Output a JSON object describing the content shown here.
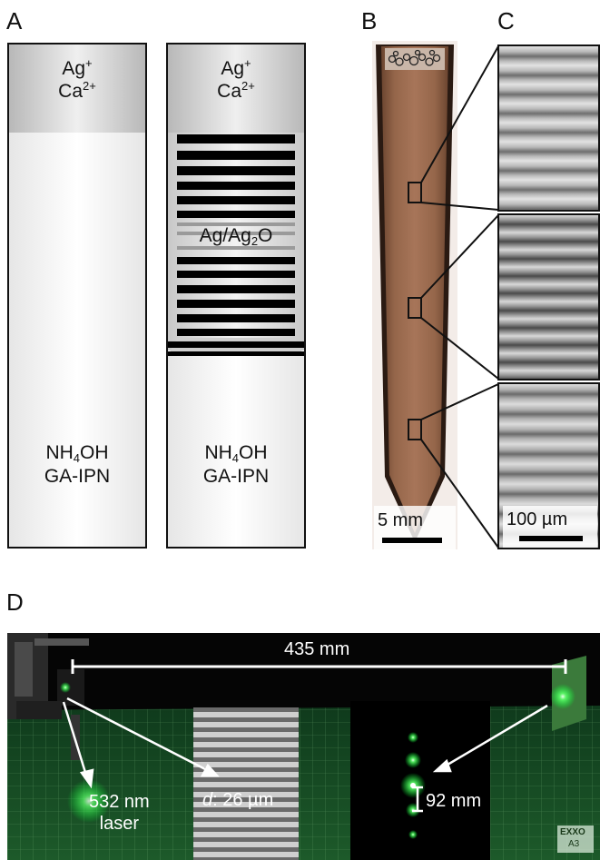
{
  "panels": {
    "a": "A",
    "b": "B",
    "c": "C",
    "d": "D"
  },
  "tube_left": {
    "top_l1": "Ag",
    "top_l1_sup": "+",
    "top_l2": "Ca",
    "top_l2_sup": "2+",
    "bot_l1a": "NH",
    "bot_l1_sub": "4",
    "bot_l1b": "OH",
    "bot_l2": "GA-IPN"
  },
  "tube_right": {
    "top_l1": "Ag",
    "top_l1_sup": "+",
    "top_l2": "Ca",
    "top_l2_sup": "2+",
    "mid_a": "Ag/Ag",
    "mid_sub": "2",
    "mid_b": "O",
    "bot_l1a": "NH",
    "bot_l1_sub": "4",
    "bot_l1b": "OH",
    "bot_l2": "GA-IPN"
  },
  "panel_b": {
    "scale_label": "5 mm"
  },
  "panel_c": {
    "scale_label": "100 µm"
  },
  "panel_d": {
    "distance_label": "435 mm",
    "laser_l1": "532 nm",
    "laser_l2": "laser",
    "spacing_italic": "d",
    "spacing_rest": ": 26 µm",
    "spot_label": "92 mm",
    "mat_brand": "EXXO",
    "mat_size": "A3"
  }
}
